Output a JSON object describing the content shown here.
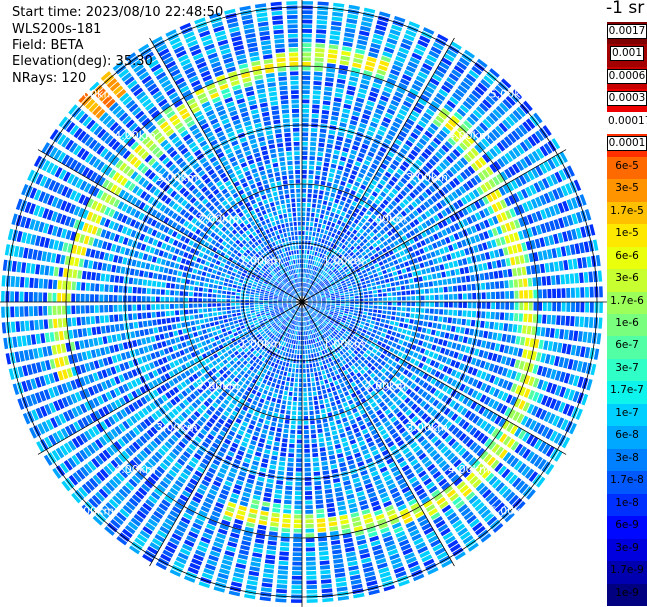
{
  "header": {
    "start_time": "Start time: 2023/08/10 22:48:50",
    "instrument": "WLS200s-181",
    "field": "Field: BETA",
    "elevation": "Elevation(deg): 35.30",
    "nrays": "NRays: 120"
  },
  "colorbar": {
    "unit_label": "-1 sr",
    "levels": [
      {
        "label": "0.0017",
        "color": "#7f0000",
        "boxed": true
      },
      {
        "label": "0.001",
        "color": "#a30000",
        "boxed": true
      },
      {
        "label": "0.0006",
        "color": "#c80000",
        "boxed": true
      },
      {
        "label": "0.0003",
        "color": "#ee0000",
        "boxed": true
      },
      {
        "label": "0.00017",
        "color": "#ffffff",
        "boxed": false
      },
      {
        "label": "0.0001",
        "color": "#ff3000",
        "boxed": true
      },
      {
        "label": "6e-5",
        "color": "#ff6a00",
        "boxed": false
      },
      {
        "label": "3e-5",
        "color": "#ff9400",
        "boxed": false
      },
      {
        "label": "1.7e-5",
        "color": "#ffc000",
        "boxed": false
      },
      {
        "label": "1e-5",
        "color": "#ffe800",
        "boxed": false
      },
      {
        "label": "6e-6",
        "color": "#eaff0c",
        "boxed": false
      },
      {
        "label": "3e-6",
        "color": "#c7ff30",
        "boxed": false
      },
      {
        "label": "1.7e-6",
        "color": "#9dff5a",
        "boxed": false
      },
      {
        "label": "1e-6",
        "color": "#79ff7d",
        "boxed": false
      },
      {
        "label": "6e-7",
        "color": "#53ffa4",
        "boxed": false
      },
      {
        "label": "3e-7",
        "color": "#30ffc7",
        "boxed": false
      },
      {
        "label": "1.7e-7",
        "color": "#0cf4eb",
        "boxed": false
      },
      {
        "label": "1e-7",
        "color": "#00d0ff",
        "boxed": false
      },
      {
        "label": "6e-8",
        "color": "#00a8ff",
        "boxed": false
      },
      {
        "label": "3e-8",
        "color": "#0080ff",
        "boxed": false
      },
      {
        "label": "1.7e-8",
        "color": "#0058ff",
        "boxed": false
      },
      {
        "label": "1e-8",
        "color": "#0030ff",
        "boxed": false
      },
      {
        "label": "6e-9",
        "color": "#0008ff",
        "boxed": false
      },
      {
        "label": "3e-9",
        "color": "#0000df",
        "boxed": false
      },
      {
        "label": "1.7e-9",
        "color": "#0000b0",
        "boxed": false
      },
      {
        "label": "1e-9",
        "color": "#000080",
        "boxed": false
      }
    ]
  },
  "chart_data": {
    "type": "heatmap",
    "projection": "polar PPI",
    "nrays": 120,
    "range_rings_km": [
      1,
      2,
      3,
      4,
      5
    ],
    "ring_label_suffix": "km",
    "ring_label_digits": 2,
    "max_range_km": 5.1,
    "spokes_deg_step": 30,
    "colorscale": "jet",
    "value_range": [
      1e-09,
      0.0017
    ],
    "features": [
      {
        "name": "aerosol-layer-ring",
        "range_km": 3.9,
        "level_index": 11,
        "note": "green-yellow annulus"
      },
      {
        "name": "hot-spot",
        "azimuth_deg": 315,
        "range_km": 4.9,
        "level_index": 6
      }
    ]
  }
}
